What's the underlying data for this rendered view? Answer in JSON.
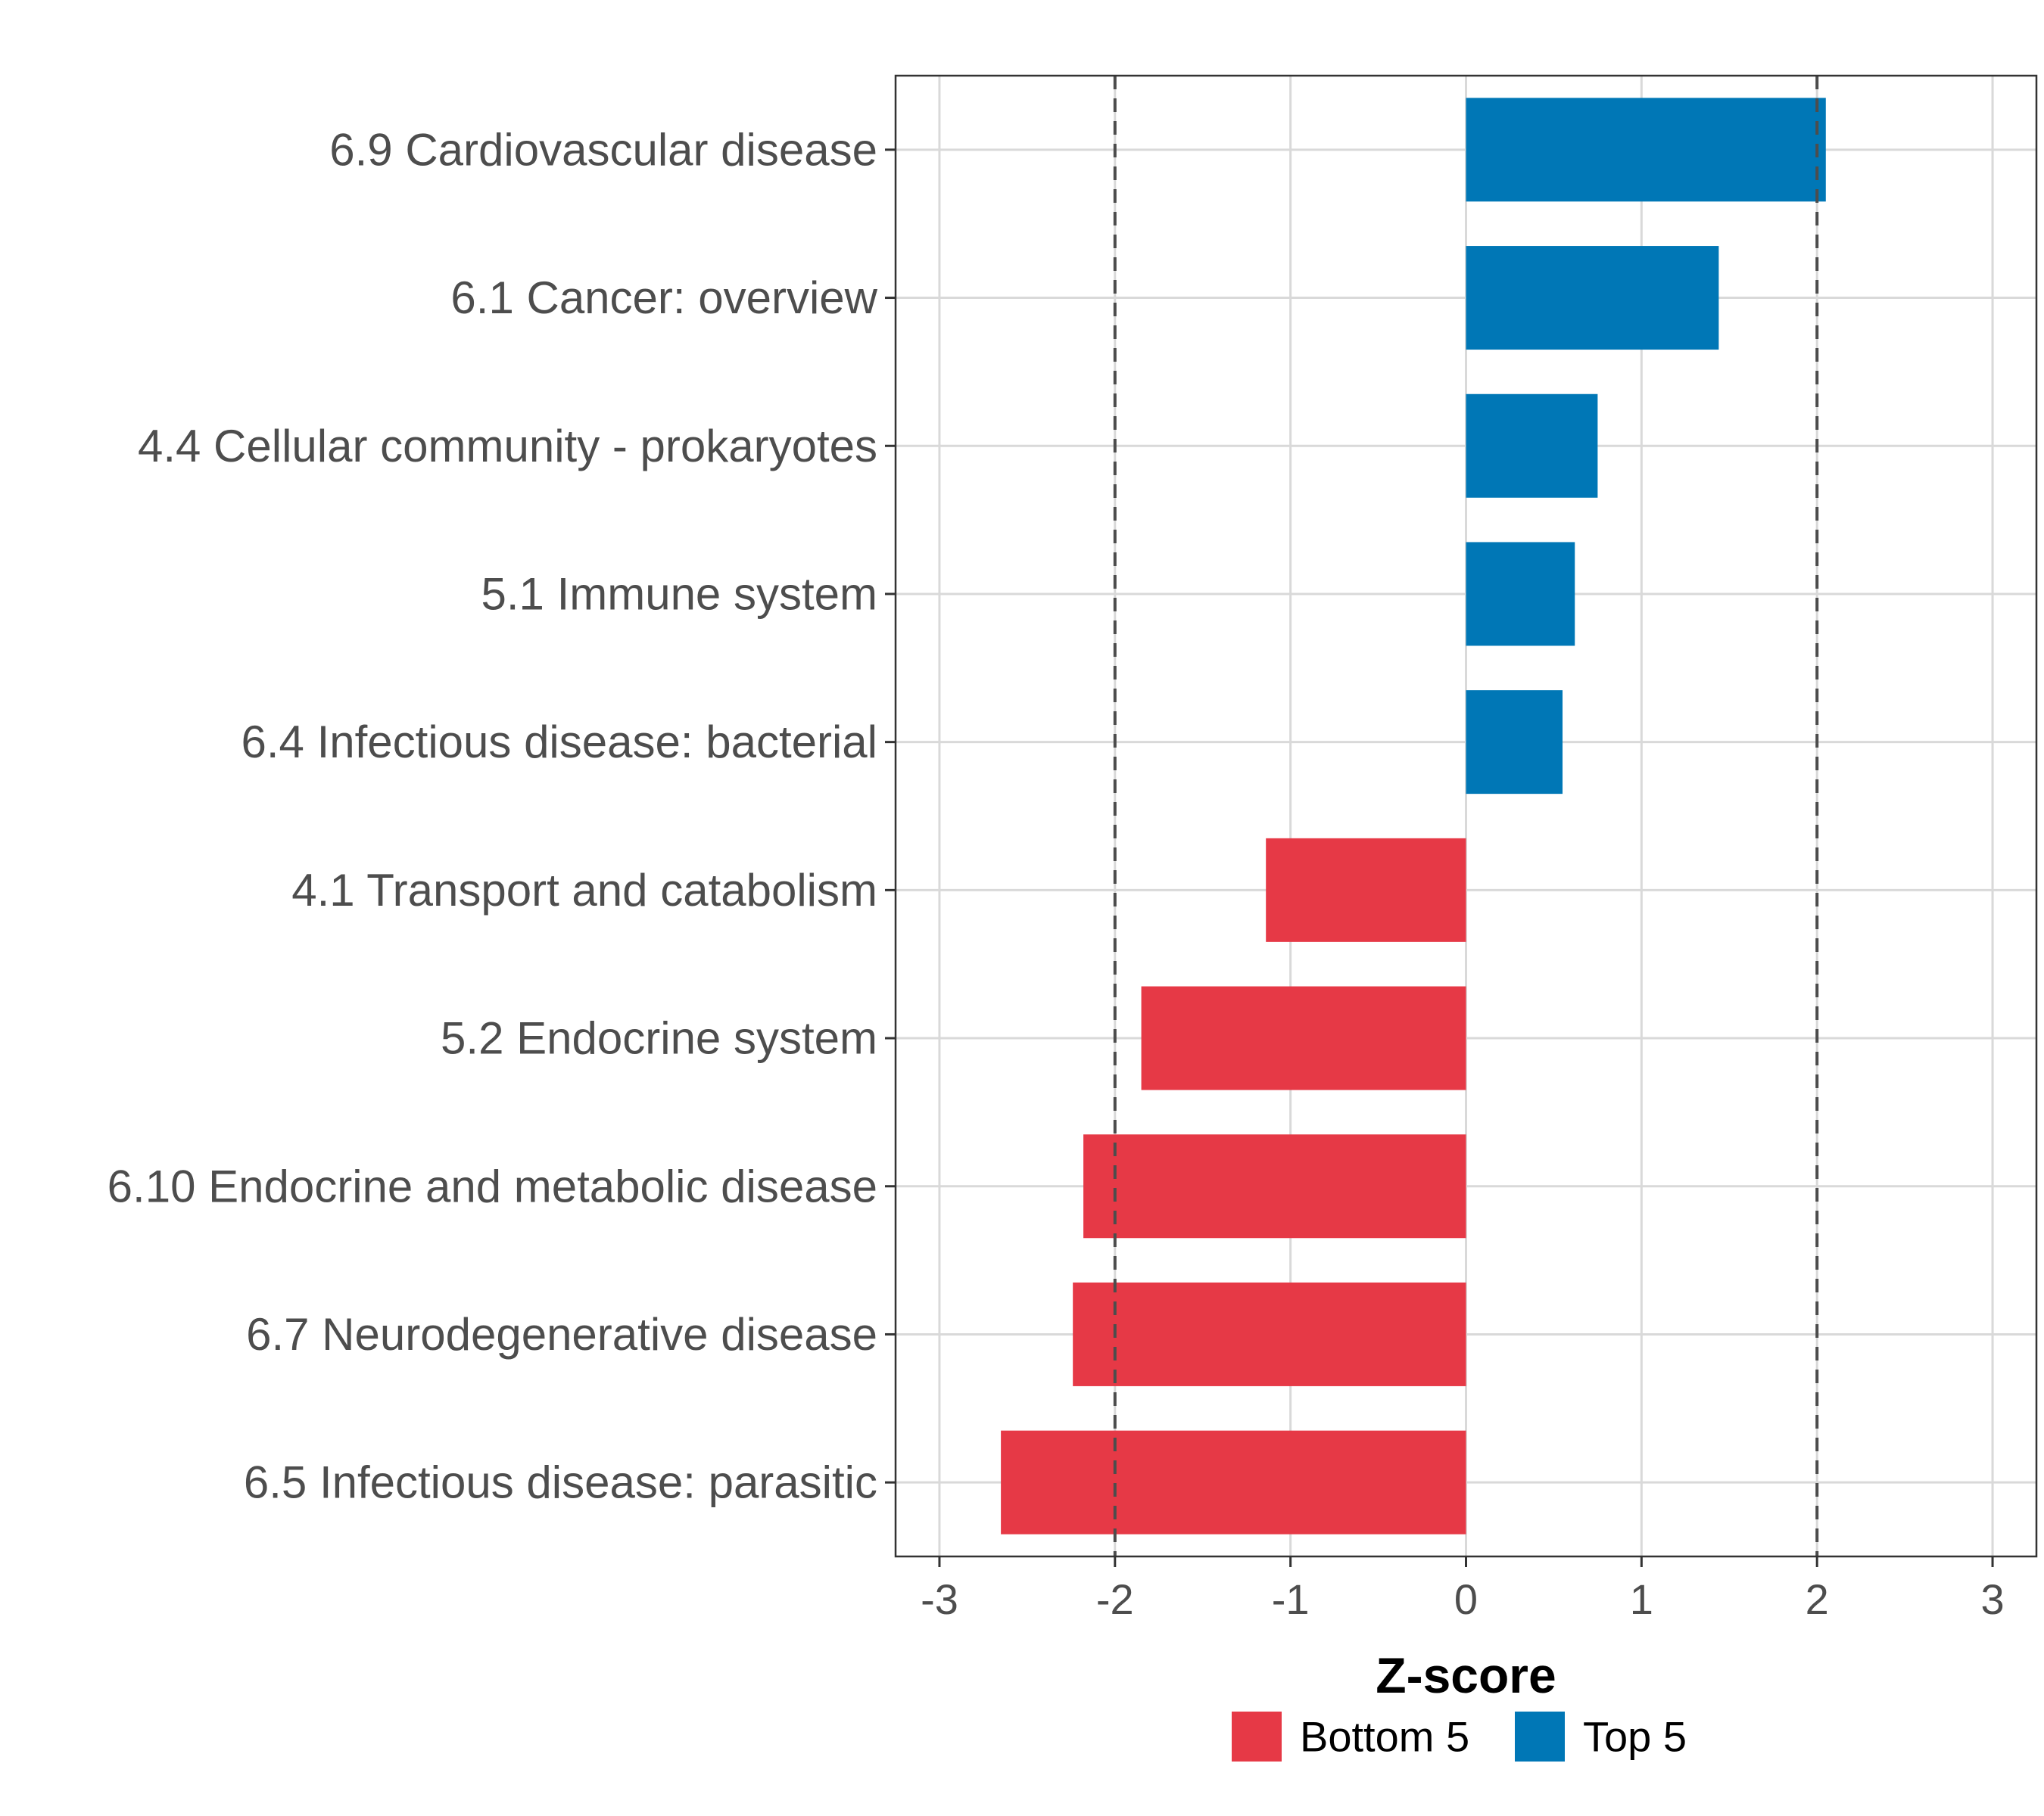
{
  "chart_data": {
    "type": "bar",
    "orientation": "horizontal",
    "categories": [
      "6.9 Cardiovascular disease",
      "6.1 Cancer: overview",
      "4.4 Cellular community - prokaryotes",
      "5.1 Immune system",
      "6.4 Infectious disease: bacterial",
      "4.1 Transport and catabolism",
      "5.2 Endocrine system",
      "6.10 Endocrine and metabolic disease",
      "6.7 Neurodegenerative disease",
      "6.5 Infectious disease: parasitic"
    ],
    "values": [
      2.05,
      1.44,
      0.75,
      0.62,
      0.55,
      -1.14,
      -1.85,
      -2.18,
      -2.24,
      -2.65
    ],
    "groups": [
      "Top 5",
      "Top 5",
      "Top 5",
      "Top 5",
      "Top 5",
      "Bottom 5",
      "Bottom 5",
      "Bottom 5",
      "Bottom 5",
      "Bottom 5"
    ],
    "xlabel": "Z-score",
    "ylabel": "",
    "xlim": [
      -3.25,
      3.25
    ],
    "xticks": [
      -3,
      -2,
      -1,
      0,
      1,
      2,
      3
    ],
    "xtick_labels": [
      "-3",
      "-2",
      "-1",
      "0",
      "1",
      "2",
      "3"
    ],
    "reference_lines": [
      -2,
      2
    ],
    "grid": true,
    "legend": {
      "position": "bottom",
      "entries": [
        {
          "label": "Bottom 5",
          "color": "#e63946"
        },
        {
          "label": "Top 5",
          "color": "#0077b6"
        }
      ]
    },
    "colors": {
      "Top 5": "#0077b6",
      "Bottom 5": "#e63946"
    }
  }
}
